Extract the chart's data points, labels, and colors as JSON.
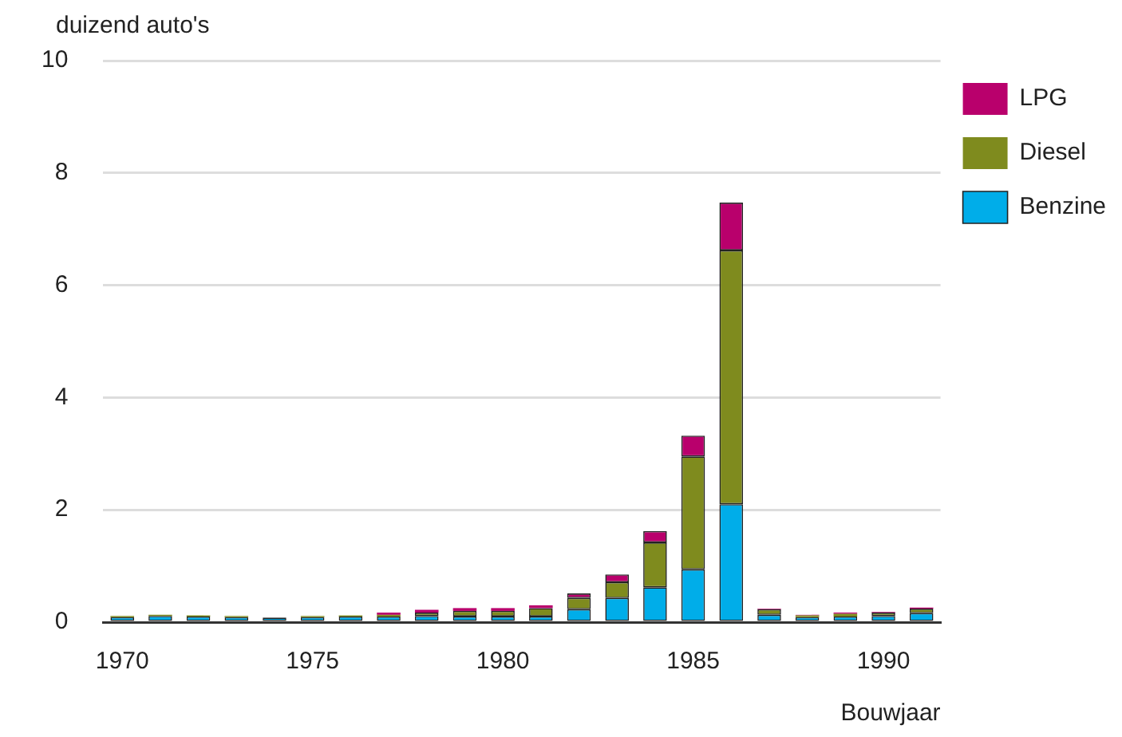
{
  "chart_data": {
    "type": "bar",
    "stacked": true,
    "ylabel": "duizend auto's",
    "xlabel": "Bouwjaar",
    "categories": [
      "1970",
      null,
      null,
      null,
      null,
      "1975",
      null,
      null,
      null,
      null,
      "1980",
      null,
      null,
      null,
      null,
      "1985",
      null,
      null,
      null,
      null,
      "1990",
      null
    ],
    "series": [
      {
        "name": "Benzine",
        "color": "#00ade9",
        "values": [
          0.09,
          0.11,
          0.1,
          0.09,
          0.08,
          0.09,
          0.1,
          0.1,
          0.11,
          0.1,
          0.1,
          0.1,
          0.23,
          0.43,
          0.62,
          0.94,
          2.1,
          0.13,
          0.09,
          0.1,
          0.11,
          0.16
        ]
      },
      {
        "name": "Diesel",
        "color": "#7f8b1e",
        "values": [
          0.02,
          0.02,
          0.02,
          0.02,
          null,
          0.02,
          0.02,
          0.03,
          0.06,
          0.1,
          0.1,
          0.15,
          0.2,
          0.28,
          0.8,
          2.01,
          4.52,
          0.1,
          0.03,
          0.05,
          0.06,
          0.08
        ]
      },
      {
        "name": "LPG",
        "color": "#b9006c",
        "values": [
          0,
          0,
          0,
          0,
          0,
          0,
          0,
          0.04,
          0.05,
          0.05,
          0.05,
          0.05,
          0.08,
          0.14,
          0.2,
          0.37,
          0.85,
          0.01,
          0.01,
          0.02,
          0.01,
          0.02
        ]
      }
    ],
    "ylim": [
      0,
      10
    ],
    "yticks": [
      0,
      2,
      4,
      6,
      8,
      10
    ],
    "grid": "y",
    "legend": "top right"
  }
}
